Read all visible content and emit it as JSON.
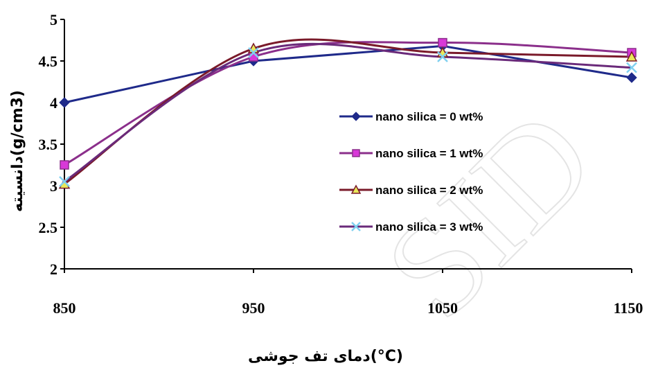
{
  "chart_data": {
    "type": "line",
    "xlabel": "دمای تف جوشی(°C)",
    "ylabel": "دانسیته(g/cm3)",
    "x": [
      850,
      950,
      1050,
      1150
    ],
    "xticks": [
      "850",
      "950",
      "1050",
      "1150"
    ],
    "yticks": [
      "2",
      "2.5",
      "3",
      "3.5",
      "4",
      "4.5",
      "5"
    ],
    "ylim": [
      2,
      5
    ],
    "grid": false,
    "smooth": true,
    "legend_position": "center-right",
    "series": [
      {
        "name": "nano silica = 0 wt%",
        "values": [
          4.0,
          4.5,
          4.68,
          4.3
        ],
        "color": "#1f2a8a",
        "marker": "diamond",
        "marker_color": "#1f2a8a"
      },
      {
        "name": "nano silica = 1 wt%",
        "values": [
          3.25,
          4.55,
          4.72,
          4.6
        ],
        "color": "#8b2f8b",
        "marker": "square",
        "marker_color": "#d838d8"
      },
      {
        "name": "nano silica = 2 wt%",
        "values": [
          3.02,
          4.65,
          4.6,
          4.55
        ],
        "color": "#7a1a2a",
        "marker": "triangle",
        "marker_color": "#e8e85a"
      },
      {
        "name": "nano silica = 3 wt%",
        "values": [
          3.05,
          4.6,
          4.55,
          4.42
        ],
        "color": "#6a2a7a",
        "marker": "x",
        "marker_color": "#7fd0f0"
      }
    ]
  },
  "watermark": "SID"
}
